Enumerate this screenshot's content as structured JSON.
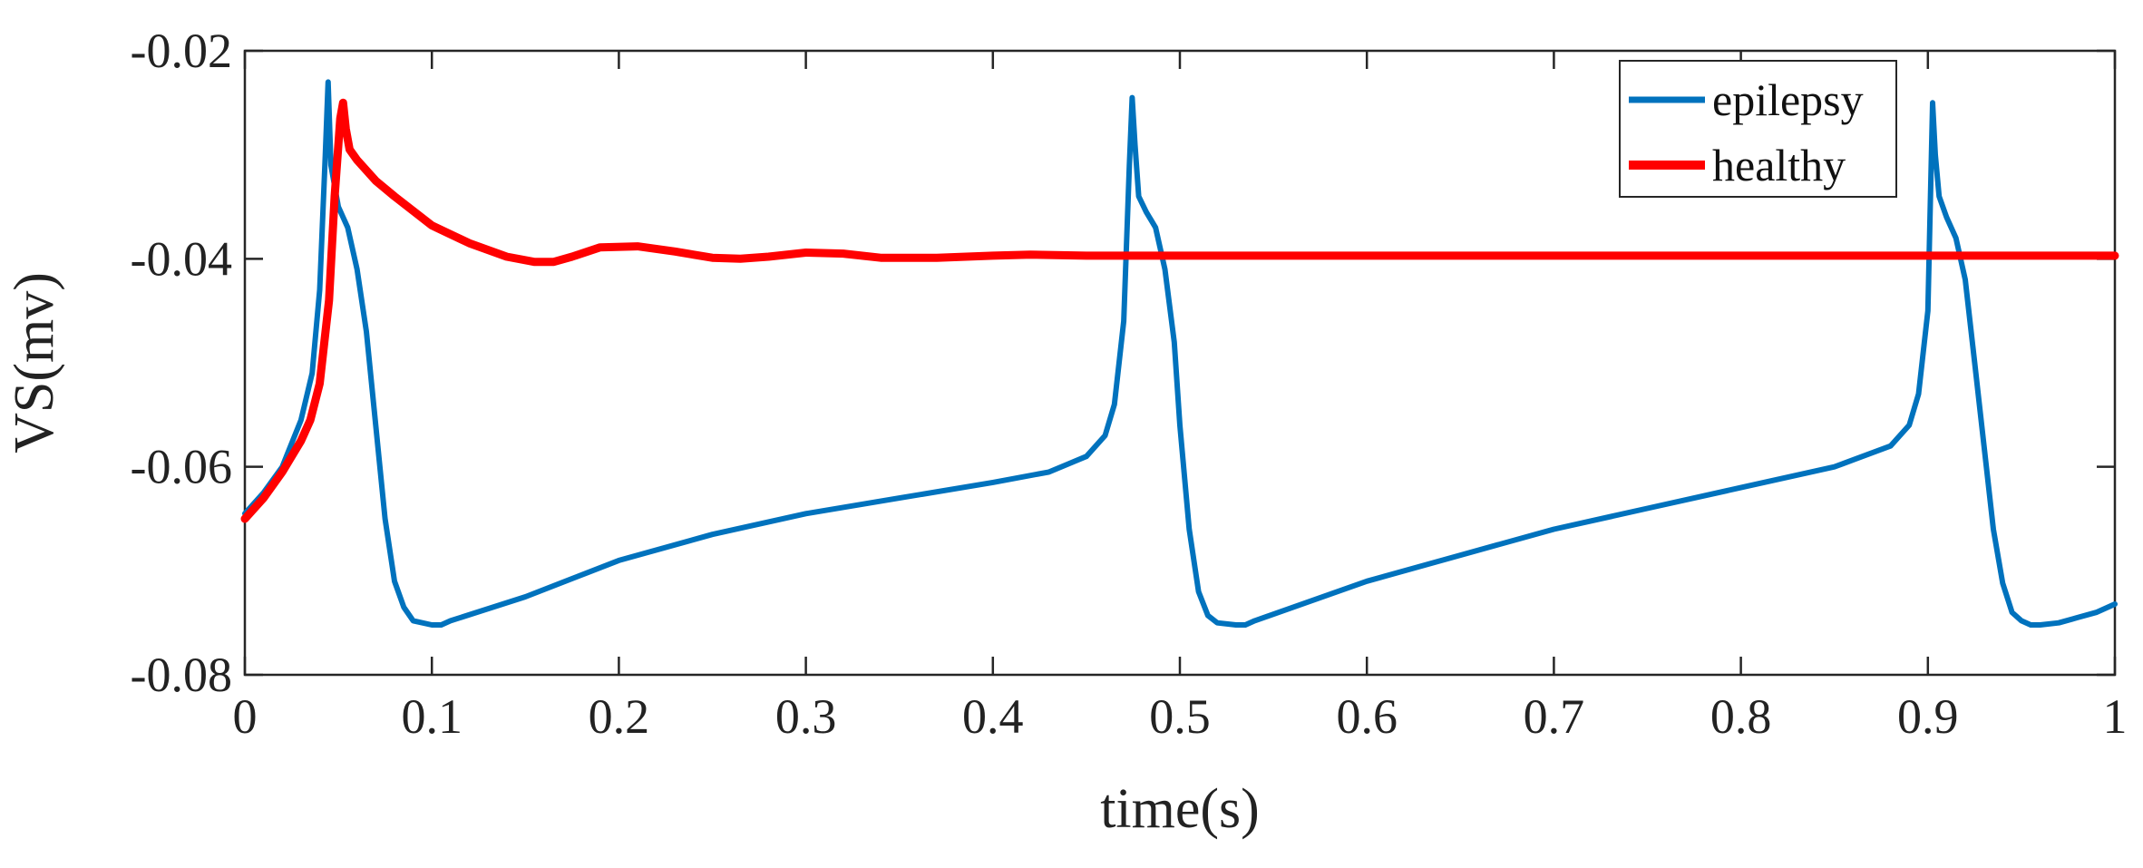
{
  "chart_data": {
    "type": "line",
    "xlabel": "time(s)",
    "ylabel": "VS(mv)",
    "xlim": [
      0,
      1
    ],
    "ylim": [
      -0.08,
      -0.02
    ],
    "xticks": [
      0,
      0.1,
      0.2,
      0.3,
      0.4,
      0.5,
      0.6,
      0.7,
      0.8,
      0.9,
      1
    ],
    "xtick_labels": [
      "0",
      "0.1",
      "0.2",
      "0.3",
      "0.4",
      "0.5",
      "0.6",
      "0.7",
      "0.8",
      "0.9",
      "1"
    ],
    "yticks": [
      -0.08,
      -0.06,
      -0.04,
      -0.02
    ],
    "ytick_labels": [
      "-0.08",
      "-0.06",
      "-0.04",
      "-0.02"
    ],
    "grid": false,
    "legend_position": "top-right",
    "series": [
      {
        "name": "epilepsy",
        "color": "#0072BD",
        "x": [
          0,
          0.01,
          0.02,
          0.03,
          0.036,
          0.04,
          0.043,
          0.0445,
          0.046,
          0.05,
          0.055,
          0.06,
          0.065,
          0.07,
          0.075,
          0.08,
          0.085,
          0.09,
          0.1,
          0.105,
          0.11,
          0.15,
          0.2,
          0.25,
          0.3,
          0.35,
          0.4,
          0.43,
          0.45,
          0.46,
          0.465,
          0.47,
          0.473,
          0.4745,
          0.476,
          0.478,
          0.482,
          0.487,
          0.492,
          0.497,
          0.5,
          0.505,
          0.51,
          0.515,
          0.52,
          0.53,
          0.535,
          0.54,
          0.6,
          0.65,
          0.7,
          0.75,
          0.8,
          0.85,
          0.88,
          0.89,
          0.895,
          0.9,
          0.9025,
          0.904,
          0.906,
          0.91,
          0.915,
          0.92,
          0.925,
          0.93,
          0.935,
          0.94,
          0.945,
          0.95,
          0.955,
          0.96,
          0.97,
          0.98,
          0.99,
          1.0
        ],
        "y": [
          -0.0645,
          -0.0625,
          -0.06,
          -0.0555,
          -0.051,
          -0.043,
          -0.03,
          -0.023,
          -0.031,
          -0.035,
          -0.037,
          -0.041,
          -0.047,
          -0.056,
          -0.065,
          -0.071,
          -0.0735,
          -0.0748,
          -0.0752,
          -0.0752,
          -0.0748,
          -0.0725,
          -0.069,
          -0.0665,
          -0.0645,
          -0.063,
          -0.0615,
          -0.0605,
          -0.059,
          -0.057,
          -0.054,
          -0.046,
          -0.031,
          -0.0245,
          -0.029,
          -0.034,
          -0.0355,
          -0.037,
          -0.041,
          -0.048,
          -0.056,
          -0.066,
          -0.072,
          -0.0743,
          -0.075,
          -0.0752,
          -0.0752,
          -0.0748,
          -0.071,
          -0.0685,
          -0.066,
          -0.064,
          -0.062,
          -0.06,
          -0.058,
          -0.056,
          -0.053,
          -0.045,
          -0.025,
          -0.03,
          -0.034,
          -0.036,
          -0.038,
          -0.042,
          -0.05,
          -0.058,
          -0.066,
          -0.0712,
          -0.074,
          -0.0748,
          -0.0752,
          -0.0752,
          -0.075,
          -0.0745,
          -0.074,
          -0.0732
        ]
      },
      {
        "name": "healthy",
        "color": "#FF0000",
        "x": [
          0,
          0.01,
          0.02,
          0.03,
          0.035,
          0.04,
          0.045,
          0.048,
          0.051,
          0.0525,
          0.054,
          0.056,
          0.06,
          0.07,
          0.08,
          0.1,
          0.12,
          0.14,
          0.155,
          0.165,
          0.175,
          0.19,
          0.21,
          0.23,
          0.25,
          0.265,
          0.28,
          0.3,
          0.32,
          0.34,
          0.37,
          0.4,
          0.42,
          0.45,
          0.5,
          0.55,
          0.6,
          0.7,
          0.8,
          0.9,
          1.0
        ],
        "y": [
          -0.065,
          -0.063,
          -0.0605,
          -0.0575,
          -0.0555,
          -0.052,
          -0.044,
          -0.034,
          -0.0265,
          -0.025,
          -0.0275,
          -0.0295,
          -0.0305,
          -0.0325,
          -0.034,
          -0.0368,
          -0.0385,
          -0.0398,
          -0.0403,
          -0.0403,
          -0.0398,
          -0.0389,
          -0.0388,
          -0.0393,
          -0.0399,
          -0.04,
          -0.0398,
          -0.0394,
          -0.0395,
          -0.0399,
          -0.0399,
          -0.0397,
          -0.0396,
          -0.0397,
          -0.0397,
          -0.0397,
          -0.0397,
          -0.0397,
          -0.0397,
          -0.0397,
          -0.0397
        ]
      }
    ]
  }
}
